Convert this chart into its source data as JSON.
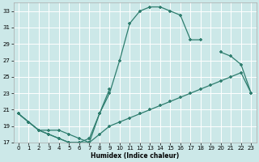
{
  "bg_color": "#cce8e8",
  "grid_color": "#ffffff",
  "line_color": "#2e7d6e",
  "xlabel": "Humidex (Indice chaleur)",
  "xlim": [
    -0.5,
    23.5
  ],
  "ylim": [
    17,
    34
  ],
  "yticks": [
    17,
    19,
    21,
    23,
    25,
    27,
    29,
    31,
    33
  ],
  "xticks": [
    0,
    1,
    2,
    3,
    4,
    5,
    6,
    7,
    8,
    9,
    10,
    11,
    12,
    13,
    14,
    15,
    16,
    17,
    18,
    19,
    20,
    21,
    22,
    23
  ],
  "line1_x": [
    0,
    1,
    2,
    3,
    4,
    5,
    6,
    7,
    8,
    9,
    10,
    11,
    12,
    13,
    14,
    15,
    16,
    17,
    18
  ],
  "line1_y": [
    20.5,
    19.5,
    18.5,
    18.5,
    18.5,
    18.0,
    17.5,
    17.0,
    20.5,
    23.0,
    27.0,
    31.5,
    33.0,
    33.5,
    33.5,
    33.0,
    32.5,
    29.5,
    29.5
  ],
  "line2_x": [
    0,
    1,
    2,
    3,
    4,
    5,
    6,
    7,
    8,
    9,
    20,
    21,
    22,
    23
  ],
  "line2_y": [
    20.5,
    19.5,
    18.5,
    18.0,
    17.5,
    17.0,
    17.0,
    17.5,
    20.5,
    23.5,
    28.0,
    27.5,
    26.5,
    23.0
  ],
  "line3_x": [
    0,
    1,
    2,
    3,
    4,
    5,
    6,
    7,
    8,
    9,
    10,
    11,
    12,
    13,
    14,
    15,
    16,
    17,
    18,
    19,
    20,
    21,
    22,
    23
  ],
  "line3_y": [
    20.5,
    19.5,
    18.5,
    18.0,
    17.5,
    17.0,
    17.0,
    17.0,
    18.0,
    19.0,
    19.5,
    20.0,
    20.5,
    21.0,
    21.5,
    22.0,
    22.5,
    23.0,
    23.5,
    24.0,
    24.5,
    25.0,
    25.5,
    23.0
  ]
}
